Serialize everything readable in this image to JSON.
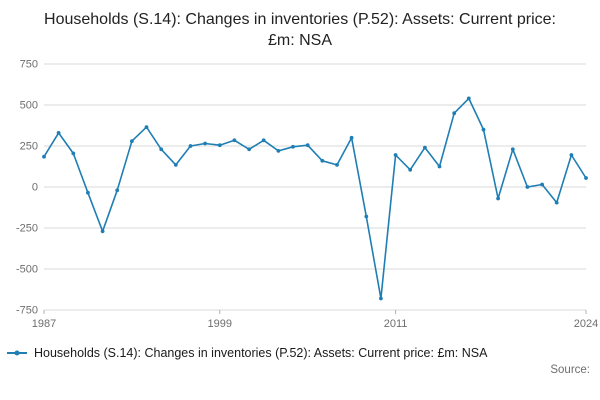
{
  "header": {
    "title": "Households (S.14): Changes in inventories (P.52): Assets: Current price: £m: NSA"
  },
  "legend": {
    "label": "Households (S.14): Changes in inventories (P.52): Assets: Current price: £m: NSA"
  },
  "footer": {
    "source": "Source:"
  },
  "chart_data": {
    "type": "line",
    "title": "Households (S.14): Changes in inventories (P.52): Assets: Current price: £m: NSA",
    "xlabel": "",
    "ylabel": "",
    "x": [
      1987,
      1988,
      1989,
      1990,
      1991,
      1992,
      1993,
      1994,
      1995,
      1996,
      1997,
      1998,
      1999,
      2000,
      2001,
      2002,
      2003,
      2004,
      2005,
      2006,
      2007,
      2008,
      2009,
      2010,
      2011,
      2012,
      2013,
      2014,
      2015,
      2016,
      2017,
      2018,
      2019,
      2020,
      2021,
      2022,
      2023,
      2024
    ],
    "values": [
      185,
      330,
      205,
      -35,
      -270,
      -20,
      280,
      365,
      230,
      135,
      250,
      265,
      255,
      285,
      230,
      285,
      220,
      245,
      255,
      160,
      135,
      300,
      -180,
      -680,
      195,
      105,
      240,
      125,
      450,
      540,
      350,
      -70,
      230,
      0,
      15,
      -95,
      195,
      55
    ],
    "xticks": [
      1987,
      1999,
      2011,
      2024
    ],
    "yticks": [
      750,
      500,
      250,
      0,
      -250,
      -500,
      -750
    ],
    "ylim": [
      -750,
      750
    ],
    "x_range": [
      1987,
      2024
    ],
    "grid": "on",
    "legend_position": "bottom",
    "marker": "dot",
    "colors": {
      "line": "#1f7eb4",
      "grid": "#d9d9d9",
      "tick_text": "#6e6e6e",
      "tick_mark": "#b0b0b0"
    }
  }
}
